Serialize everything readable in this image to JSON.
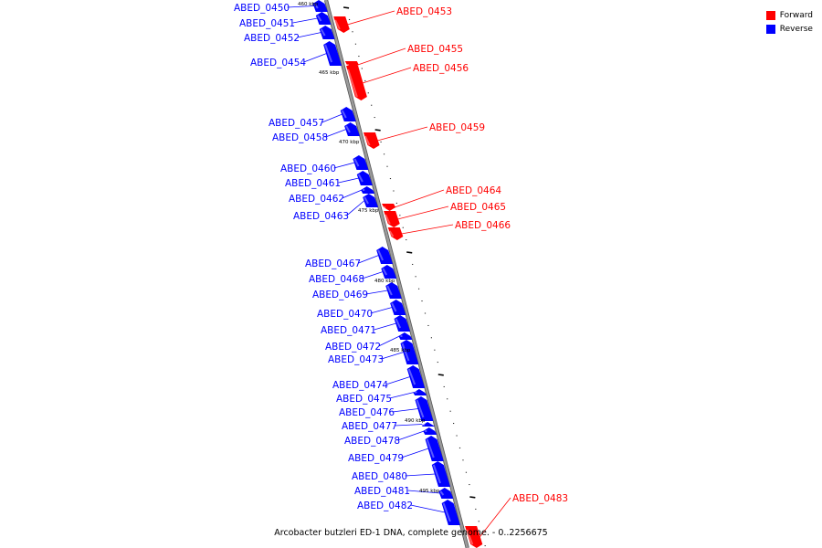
{
  "caption": "Arcobacter butzleri ED-1 DNA, complete genome. - 0..2256675",
  "legend": [
    {
      "label": "Forward",
      "color": "#ff0000"
    },
    {
      "label": "Reverse",
      "color": "#0000ff"
    }
  ],
  "colors": {
    "forward": "#ff0000",
    "reverse": "#0000ff",
    "backbone": "#9a9a9a"
  },
  "kbp_markers": [
    "460 kbp",
    "465 kbp",
    "470 kbp",
    "475 kbp",
    "480 kbp",
    "485 kbp",
    "490 kbp",
    "495 kbp"
  ],
  "genes": [
    {
      "name": "ABED_0450",
      "strand": "reverse"
    },
    {
      "name": "ABED_0451",
      "strand": "reverse"
    },
    {
      "name": "ABED_0452",
      "strand": "reverse"
    },
    {
      "name": "ABED_0453",
      "strand": "forward"
    },
    {
      "name": "ABED_0454",
      "strand": "reverse"
    },
    {
      "name": "ABED_0455",
      "strand": "forward"
    },
    {
      "name": "ABED_0456",
      "strand": "forward"
    },
    {
      "name": "ABED_0457",
      "strand": "reverse"
    },
    {
      "name": "ABED_0458",
      "strand": "reverse"
    },
    {
      "name": "ABED_0459",
      "strand": "forward"
    },
    {
      "name": "ABED_0460",
      "strand": "reverse"
    },
    {
      "name": "ABED_0461",
      "strand": "reverse"
    },
    {
      "name": "ABED_0462",
      "strand": "reverse"
    },
    {
      "name": "ABED_0463",
      "strand": "reverse"
    },
    {
      "name": "ABED_0464",
      "strand": "forward"
    },
    {
      "name": "ABED_0465",
      "strand": "forward"
    },
    {
      "name": "ABED_0466",
      "strand": "forward"
    },
    {
      "name": "ABED_0467",
      "strand": "reverse"
    },
    {
      "name": "ABED_0468",
      "strand": "reverse"
    },
    {
      "name": "ABED_0469",
      "strand": "reverse"
    },
    {
      "name": "ABED_0470",
      "strand": "reverse"
    },
    {
      "name": "ABED_0471",
      "strand": "reverse"
    },
    {
      "name": "ABED_0472",
      "strand": "reverse"
    },
    {
      "name": "ABED_0473",
      "strand": "reverse"
    },
    {
      "name": "ABED_0474",
      "strand": "reverse"
    },
    {
      "name": "ABED_0475",
      "strand": "reverse"
    },
    {
      "name": "ABED_0476",
      "strand": "reverse"
    },
    {
      "name": "ABED_0477",
      "strand": "reverse"
    },
    {
      "name": "ABED_0478",
      "strand": "reverse"
    },
    {
      "name": "ABED_0479",
      "strand": "reverse"
    },
    {
      "name": "ABED_0480",
      "strand": "reverse"
    },
    {
      "name": "ABED_0481",
      "strand": "reverse"
    },
    {
      "name": "ABED_0482",
      "strand": "reverse"
    },
    {
      "name": "ABED_0483",
      "strand": "forward"
    }
  ]
}
